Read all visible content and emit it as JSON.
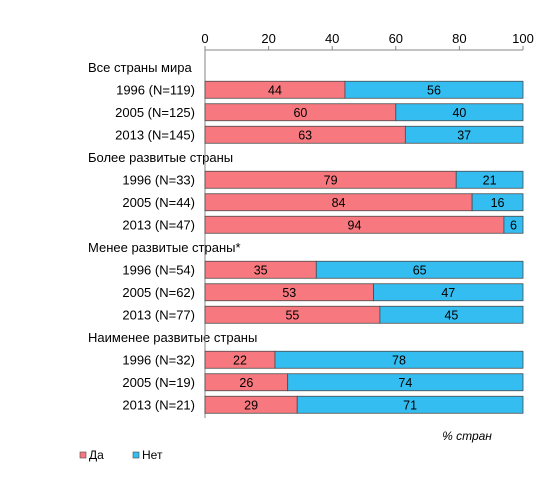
{
  "chart_data": {
    "type": "bar",
    "orientation": "horizontal",
    "stacked": true,
    "xaxis_position": "top",
    "xlim": [
      0,
      100
    ],
    "xticks": [
      "0",
      "20",
      "40",
      "60",
      "80",
      "100"
    ],
    "xlabel": "% стран",
    "grid": false,
    "legend_position": "bottom-left",
    "groups": [
      {
        "label": "Все страны мира",
        "rows": [
          {
            "label": "1996 (N=119)",
            "values": [
              44,
              56
            ]
          },
          {
            "label": "2005 (N=125)",
            "values": [
              60,
              40
            ]
          },
          {
            "label": "2013 (N=145)",
            "values": [
              63,
              37
            ]
          }
        ]
      },
      {
        "label": "Более развитые страны",
        "rows": [
          {
            "label": "1996 (N=33)",
            "values": [
              79,
              21
            ]
          },
          {
            "label": "2005 (N=44)",
            "values": [
              84,
              16
            ]
          },
          {
            "label": "2013 (N=47)",
            "values": [
              94,
              6
            ]
          }
        ]
      },
      {
        "label": "Менее развитые страны*",
        "rows": [
          {
            "label": "1996 (N=54)",
            "values": [
              35,
              65
            ]
          },
          {
            "label": "2005 (N=62)",
            "values": [
              53,
              47
            ]
          },
          {
            "label": "2013 (N=77)",
            "values": [
              55,
              45
            ]
          }
        ]
      },
      {
        "label": "Наименее развитые страны",
        "rows": [
          {
            "label": "1996 (N=32)",
            "values": [
              22,
              78
            ]
          },
          {
            "label": "2005 (N=19)",
            "values": [
              26,
              74
            ]
          },
          {
            "label": "2013 (N=21)",
            "values": [
              29,
              71
            ]
          }
        ]
      }
    ],
    "series": [
      {
        "name": "Да",
        "color": "#f7797f"
      },
      {
        "name": "Нет",
        "color": "#33bdf0"
      }
    ]
  }
}
